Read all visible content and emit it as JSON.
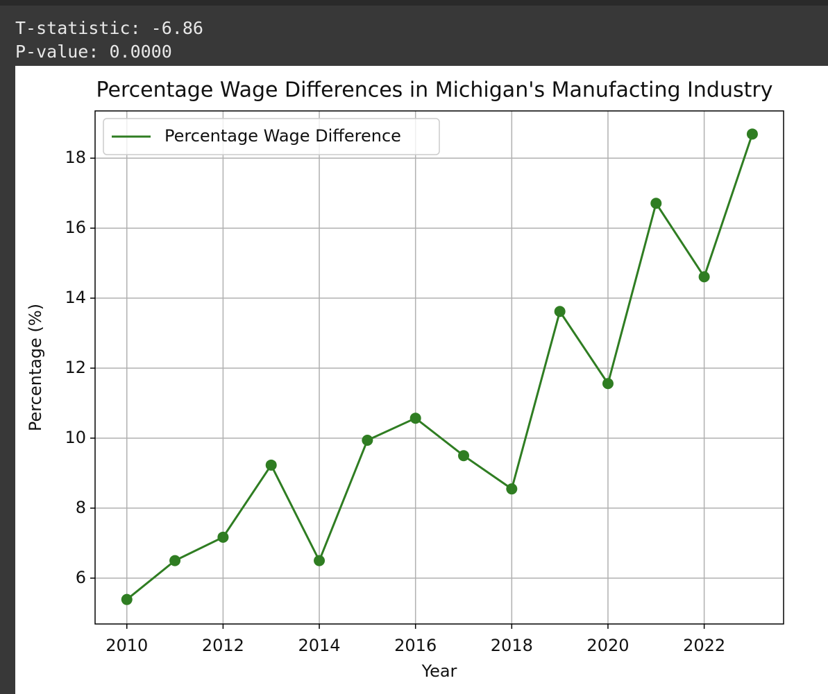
{
  "output": {
    "lines": [
      "T-statistic: -6.86",
      "P-value: 0.0000"
    ]
  },
  "chart_data": {
    "type": "line",
    "title": "Percentage Wage Differences in Michigan's Manufacting Industry",
    "x_label": "Year",
    "y_label": "Percentage (%)",
    "x": [
      2010,
      2011,
      2012,
      2013,
      2014,
      2015,
      2016,
      2017,
      2018,
      2019,
      2020,
      2021,
      2022,
      2023
    ],
    "series": [
      {
        "name": "Percentage Wage Difference",
        "color": "#2f7d22",
        "values": [
          5.39,
          6.5,
          7.17,
          9.23,
          6.5,
          9.94,
          10.57,
          9.5,
          8.55,
          13.62,
          11.56,
          16.71,
          14.61,
          18.69
        ]
      }
    ],
    "xlim": [
      2009.34,
      2023.65
    ],
    "ylim": [
      4.69,
      19.35
    ],
    "xticks": [
      2010,
      2012,
      2014,
      2016,
      2018,
      2020,
      2022
    ],
    "yticks": [
      6,
      8,
      10,
      12,
      14,
      16,
      18
    ],
    "grid": true,
    "legend": "upper-left",
    "markers": true
  }
}
